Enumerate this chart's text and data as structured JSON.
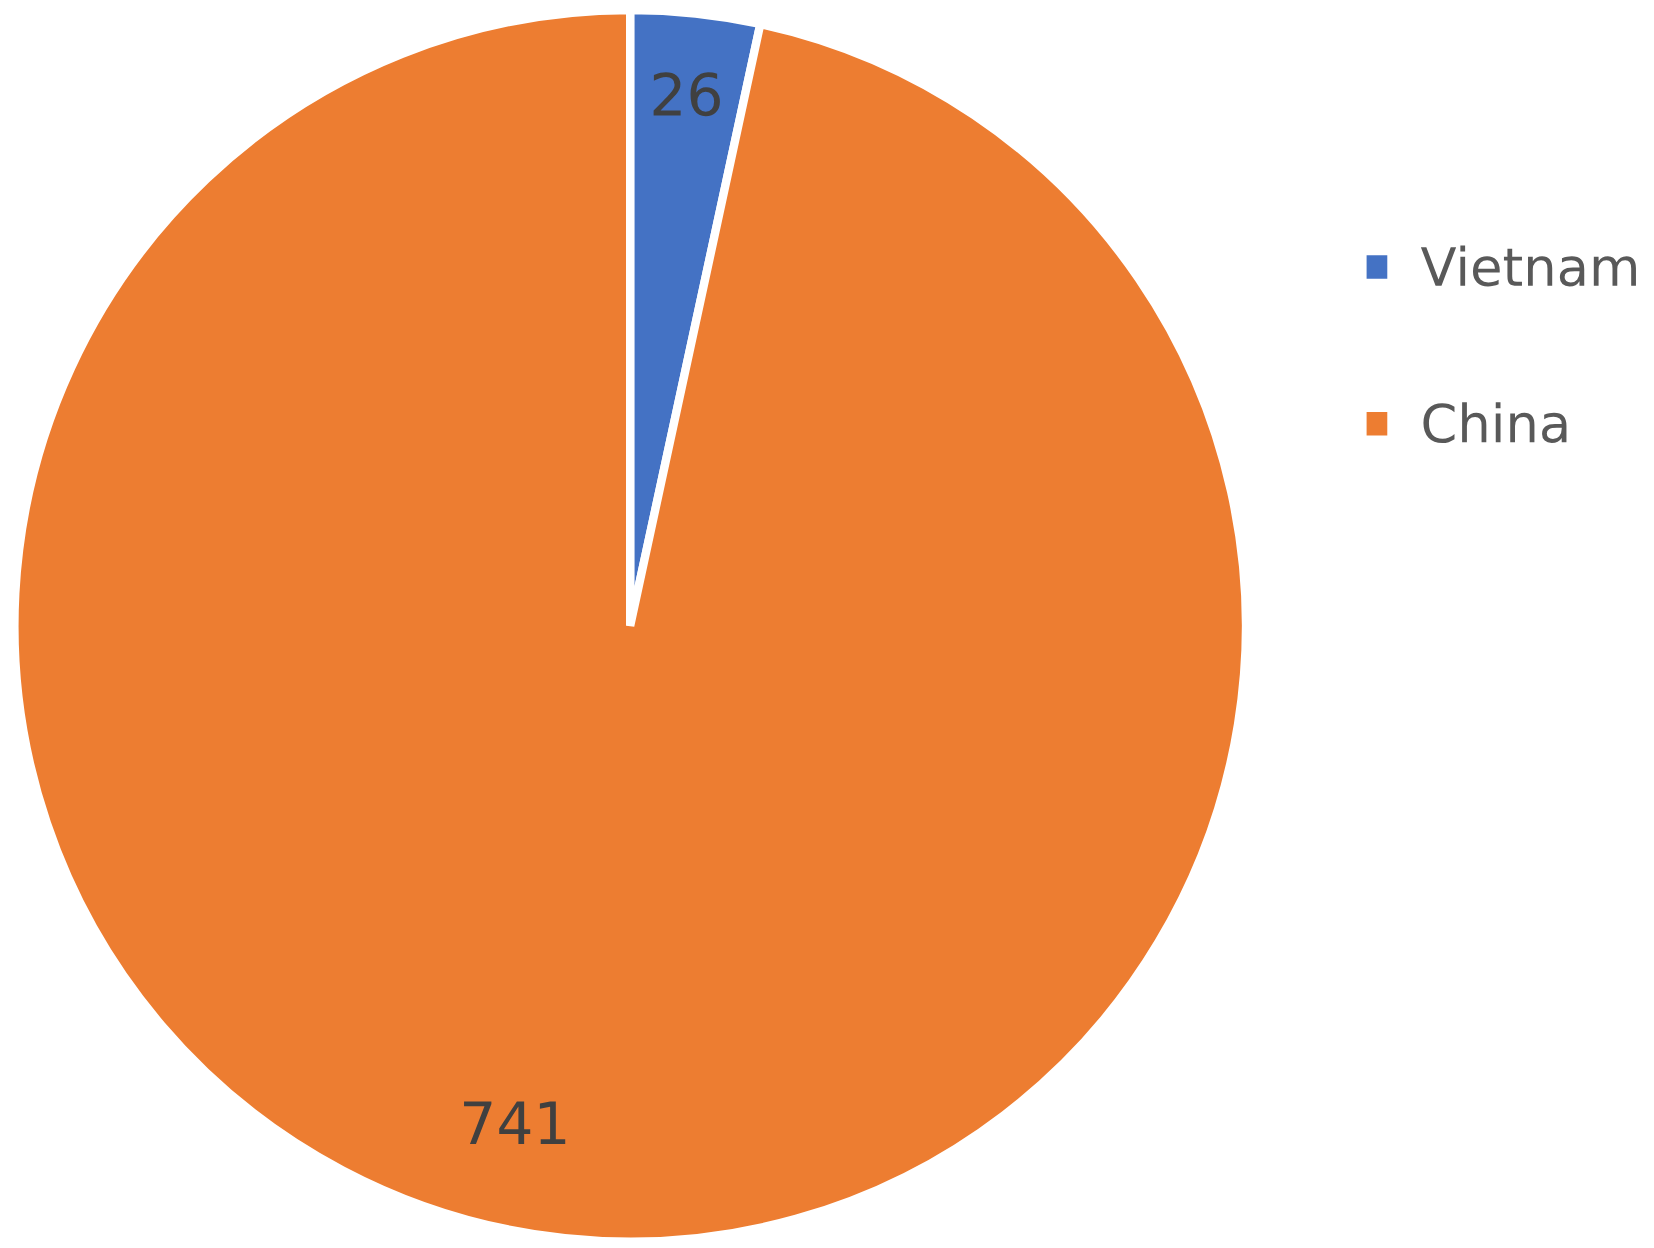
{
  "chart_data": {
    "type": "pie",
    "categories": [
      "Vietnam",
      "China"
    ],
    "values": [
      26,
      741
    ],
    "colors": [
      "#4472c4",
      "#ed7d31"
    ],
    "data_labels": true,
    "legend": "right"
  }
}
